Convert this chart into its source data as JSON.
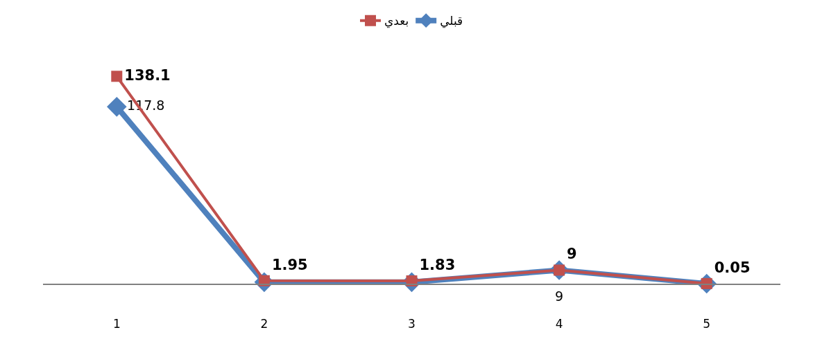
{
  "chart_data": {
    "type": "line",
    "categories": [
      "1",
      "2",
      "3",
      "4",
      "5"
    ],
    "series": [
      {
        "name": "قبلي",
        "color": "#4f81bd",
        "marker": "diamond",
        "values": [
          117.8,
          1,
          1,
          9,
          0
        ],
        "value_labels": [
          "117.8",
          null,
          null,
          "9",
          null
        ]
      },
      {
        "name": "بعدي",
        "color": "#c0504d",
        "marker": "square",
        "values": [
          138.1,
          1.95,
          1.83,
          9,
          0.05
        ],
        "value_labels": [
          "138.1",
          "1.95",
          "1.83",
          "9",
          "0.05"
        ]
      }
    ],
    "tick_labels": "x",
    "legend": "top"
  }
}
